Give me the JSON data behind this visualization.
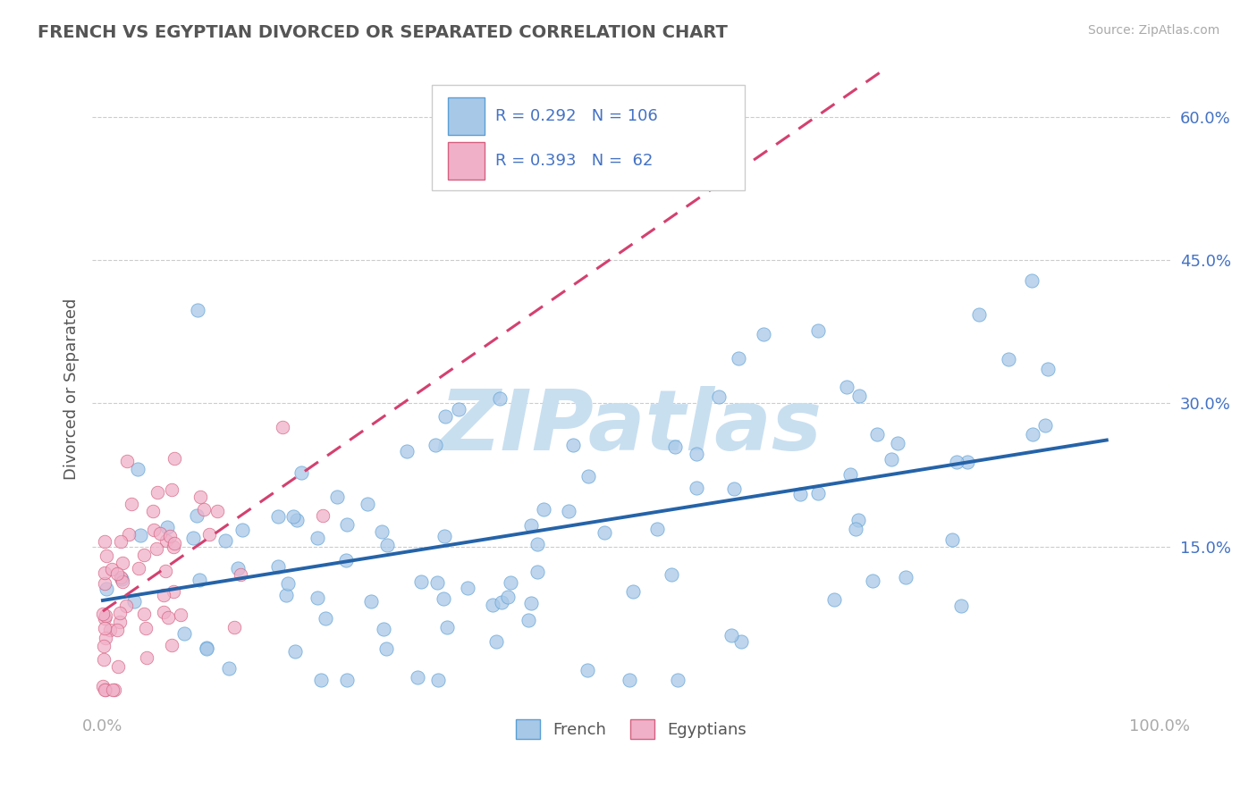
{
  "title": "FRENCH VS EGYPTIAN DIVORCED OR SEPARATED CORRELATION CHART",
  "source_text": "Source: ZipAtlas.com",
  "ylabel": "Divorced or Separated",
  "french_R": 0.292,
  "french_N": 106,
  "egyptian_R": 0.393,
  "egyptian_N": 62,
  "french_color": "#a8c8e8",
  "french_edge_color": "#5a9fd4",
  "french_line_color": "#2563a8",
  "egyptian_color": "#f0b0c8",
  "egyptian_edge_color": "#d46080",
  "egyptian_line_color": "#d44070",
  "background_color": "#ffffff",
  "grid_color": "#cccccc",
  "watermark_text": "ZIPatlas",
  "watermark_color": "#c8dff0",
  "title_color": "#555555",
  "axis_label_color": "#555555",
  "tick_color": "#aaaaaa",
  "ytick_color": "#4472c4",
  "legend_color": "#4472c4",
  "figsize": [
    14.06,
    8.92
  ],
  "dpi": 100,
  "french_seed": 17,
  "egyptian_seed": 99
}
